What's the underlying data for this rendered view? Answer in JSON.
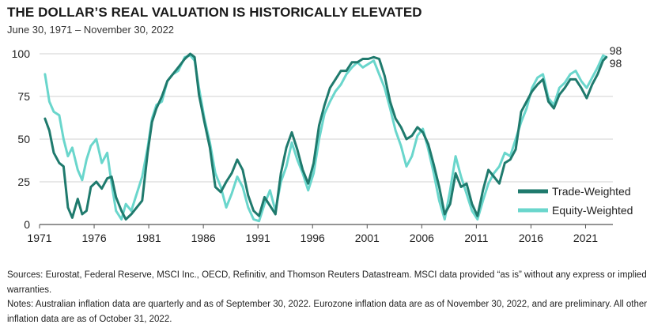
{
  "title": "THE DOLLAR’S REAL VALUATION IS HISTORICALLY ELEVATED",
  "subtitle": "June 30, 1971 – November 30, 2022",
  "chart_data": {
    "type": "line",
    "x_ticks": [
      "1971",
      "1976",
      "1981",
      "1986",
      "1991",
      "1996",
      "2001",
      "2006",
      "2011",
      "2016",
      "2021"
    ],
    "y_ticks": [
      "0",
      "25",
      "50",
      "75",
      "100"
    ],
    "ylim": [
      0,
      100
    ],
    "xlim": [
      1971.5,
      2022.9
    ],
    "grid": "horizontal",
    "legend": "bottom-right",
    "series": [
      {
        "name": "Trade-Weighted",
        "color": "#1f7a6d",
        "end_label": "98",
        "points": [
          [
            1971.5,
            62
          ],
          [
            1971.9,
            55
          ],
          [
            1972.3,
            42
          ],
          [
            1972.8,
            36
          ],
          [
            1973.2,
            34
          ],
          [
            1973.6,
            10
          ],
          [
            1974.0,
            4
          ],
          [
            1974.5,
            15
          ],
          [
            1974.9,
            6
          ],
          [
            1975.3,
            8
          ],
          [
            1975.7,
            22
          ],
          [
            1976.2,
            25
          ],
          [
            1976.7,
            21
          ],
          [
            1977.2,
            27
          ],
          [
            1977.6,
            28
          ],
          [
            1978.0,
            16
          ],
          [
            1978.5,
            8
          ],
          [
            1978.9,
            3
          ],
          [
            1979.4,
            6
          ],
          [
            1979.9,
            10
          ],
          [
            1980.4,
            14
          ],
          [
            1980.9,
            42
          ],
          [
            1981.3,
            60
          ],
          [
            1981.7,
            68
          ],
          [
            1982.2,
            75
          ],
          [
            1982.7,
            84
          ],
          [
            1983.2,
            88
          ],
          [
            1983.7,
            92
          ],
          [
            1984.3,
            97
          ],
          [
            1984.8,
            100
          ],
          [
            1985.2,
            98
          ],
          [
            1985.6,
            76
          ],
          [
            1986.1,
            60
          ],
          [
            1986.6,
            45
          ],
          [
            1987.1,
            22
          ],
          [
            1987.6,
            19
          ],
          [
            1988.1,
            25
          ],
          [
            1988.6,
            30
          ],
          [
            1989.1,
            38
          ],
          [
            1989.6,
            32
          ],
          [
            1990.1,
            17
          ],
          [
            1990.6,
            8
          ],
          [
            1991.1,
            5
          ],
          [
            1991.6,
            16
          ],
          [
            1992.1,
            11
          ],
          [
            1992.6,
            6
          ],
          [
            1993.1,
            30
          ],
          [
            1993.6,
            45
          ],
          [
            1994.1,
            54
          ],
          [
            1994.6,
            44
          ],
          [
            1995.1,
            32
          ],
          [
            1995.6,
            24
          ],
          [
            1996.1,
            36
          ],
          [
            1996.6,
            58
          ],
          [
            1997.1,
            70
          ],
          [
            1997.6,
            80
          ],
          [
            1998.1,
            85
          ],
          [
            1998.6,
            90
          ],
          [
            1999.1,
            90
          ],
          [
            1999.6,
            95
          ],
          [
            2000.1,
            95
          ],
          [
            2000.6,
            97
          ],
          [
            2001.1,
            97
          ],
          [
            2001.6,
            98
          ],
          [
            2002.1,
            97
          ],
          [
            2002.6,
            87
          ],
          [
            2003.1,
            72
          ],
          [
            2003.6,
            62
          ],
          [
            2004.1,
            57
          ],
          [
            2004.6,
            50
          ],
          [
            2005.1,
            52
          ],
          [
            2005.6,
            57
          ],
          [
            2006.1,
            54
          ],
          [
            2006.6,
            47
          ],
          [
            2007.1,
            35
          ],
          [
            2007.6,
            22
          ],
          [
            2008.1,
            6
          ],
          [
            2008.6,
            12
          ],
          [
            2009.1,
            30
          ],
          [
            2009.6,
            22
          ],
          [
            2010.1,
            24
          ],
          [
            2010.6,
            12
          ],
          [
            2011.1,
            5
          ],
          [
            2011.6,
            20
          ],
          [
            2012.1,
            32
          ],
          [
            2012.6,
            28
          ],
          [
            2013.1,
            24
          ],
          [
            2013.6,
            36
          ],
          [
            2014.1,
            38
          ],
          [
            2014.6,
            44
          ],
          [
            2015.1,
            66
          ],
          [
            2015.6,
            72
          ],
          [
            2016.1,
            78
          ],
          [
            2016.6,
            82
          ],
          [
            2017.1,
            85
          ],
          [
            2017.6,
            72
          ],
          [
            2018.1,
            68
          ],
          [
            2018.6,
            76
          ],
          [
            2019.1,
            80
          ],
          [
            2019.6,
            85
          ],
          [
            2020.1,
            85
          ],
          [
            2020.6,
            80
          ],
          [
            2021.1,
            74
          ],
          [
            2021.6,
            82
          ],
          [
            2022.1,
            88
          ],
          [
            2022.6,
            96
          ],
          [
            2022.9,
            98
          ]
        ]
      },
      {
        "name": "Equity-Weighted",
        "color": "#6ad6cc",
        "end_label": "98",
        "points": [
          [
            1971.5,
            88
          ],
          [
            1971.9,
            72
          ],
          [
            1972.3,
            66
          ],
          [
            1972.8,
            64
          ],
          [
            1973.2,
            50
          ],
          [
            1973.6,
            40
          ],
          [
            1974.0,
            45
          ],
          [
            1974.5,
            32
          ],
          [
            1974.9,
            26
          ],
          [
            1975.3,
            38
          ],
          [
            1975.7,
            46
          ],
          [
            1976.2,
            50
          ],
          [
            1976.7,
            36
          ],
          [
            1977.2,
            42
          ],
          [
            1977.6,
            24
          ],
          [
            1978.0,
            8
          ],
          [
            1978.5,
            3
          ],
          [
            1978.9,
            12
          ],
          [
            1979.4,
            8
          ],
          [
            1979.9,
            18
          ],
          [
            1980.4,
            28
          ],
          [
            1980.9,
            45
          ],
          [
            1981.3,
            62
          ],
          [
            1981.7,
            70
          ],
          [
            1982.2,
            72
          ],
          [
            1982.7,
            84
          ],
          [
            1983.2,
            88
          ],
          [
            1983.7,
            90
          ],
          [
            1984.3,
            98
          ],
          [
            1984.8,
            99
          ],
          [
            1985.2,
            96
          ],
          [
            1985.6,
            80
          ],
          [
            1986.1,
            62
          ],
          [
            1986.6,
            48
          ],
          [
            1987.1,
            30
          ],
          [
            1987.6,
            22
          ],
          [
            1988.1,
            10
          ],
          [
            1988.6,
            18
          ],
          [
            1989.1,
            28
          ],
          [
            1989.6,
            22
          ],
          [
            1990.1,
            10
          ],
          [
            1990.6,
            3
          ],
          [
            1991.1,
            2
          ],
          [
            1991.6,
            12
          ],
          [
            1992.1,
            20
          ],
          [
            1992.6,
            8
          ],
          [
            1993.1,
            25
          ],
          [
            1993.6,
            34
          ],
          [
            1994.1,
            48
          ],
          [
            1994.6,
            38
          ],
          [
            1995.1,
            30
          ],
          [
            1995.6,
            20
          ],
          [
            1996.1,
            30
          ],
          [
            1996.6,
            50
          ],
          [
            1997.1,
            65
          ],
          [
            1997.6,
            72
          ],
          [
            1998.1,
            78
          ],
          [
            1998.6,
            82
          ],
          [
            1999.1,
            88
          ],
          [
            1999.6,
            92
          ],
          [
            2000.1,
            95
          ],
          [
            2000.6,
            92
          ],
          [
            2001.1,
            94
          ],
          [
            2001.6,
            96
          ],
          [
            2002.1,
            88
          ],
          [
            2002.6,
            80
          ],
          [
            2003.1,
            68
          ],
          [
            2003.6,
            55
          ],
          [
            2004.1,
            46
          ],
          [
            2004.6,
            34
          ],
          [
            2005.1,
            40
          ],
          [
            2005.6,
            52
          ],
          [
            2006.1,
            56
          ],
          [
            2006.6,
            44
          ],
          [
            2007.1,
            30
          ],
          [
            2007.6,
            14
          ],
          [
            2008.1,
            3
          ],
          [
            2008.6,
            20
          ],
          [
            2009.1,
            40
          ],
          [
            2009.6,
            28
          ],
          [
            2010.1,
            18
          ],
          [
            2010.6,
            8
          ],
          [
            2011.1,
            3
          ],
          [
            2011.6,
            14
          ],
          [
            2012.1,
            24
          ],
          [
            2012.6,
            30
          ],
          [
            2013.1,
            34
          ],
          [
            2013.6,
            42
          ],
          [
            2014.1,
            40
          ],
          [
            2014.6,
            50
          ],
          [
            2015.1,
            60
          ],
          [
            2015.6,
            68
          ],
          [
            2016.1,
            80
          ],
          [
            2016.6,
            86
          ],
          [
            2017.1,
            88
          ],
          [
            2017.6,
            74
          ],
          [
            2018.1,
            70
          ],
          [
            2018.6,
            80
          ],
          [
            2019.1,
            83
          ],
          [
            2019.6,
            88
          ],
          [
            2020.1,
            90
          ],
          [
            2020.6,
            84
          ],
          [
            2021.1,
            80
          ],
          [
            2021.6,
            86
          ],
          [
            2022.1,
            92
          ],
          [
            2022.6,
            99
          ],
          [
            2022.9,
            98
          ]
        ]
      }
    ]
  },
  "sources_text": "Sources: Eurostat, Federal Reserve, MSCI Inc., OECD, Refinitiv, and Thomson Reuters Datastream. MSCI data provided “as is” without any express or implied warranties.",
  "notes_text": "Notes: Australian inflation data are quarterly and as of September 30, 2022. Eurozone inflation data are as of November 30, 2022, and are preliminary. All other inflation data are as of October 31, 2022."
}
